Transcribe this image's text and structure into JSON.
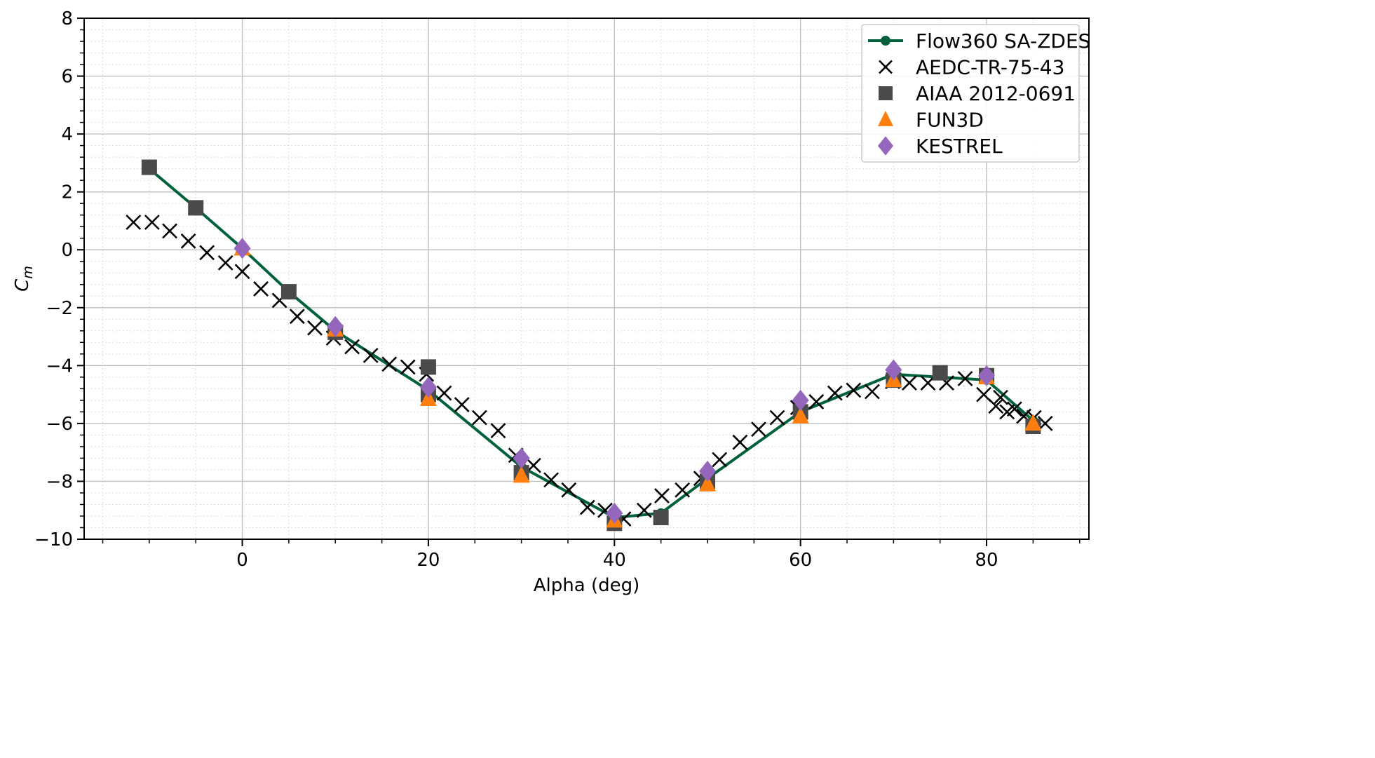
{
  "chart_data": {
    "type": "scatter",
    "xlabel": "Alpha (deg)",
    "ylabel_base": "C",
    "ylabel_sub": "m",
    "xlim": [
      -17,
      91
    ],
    "ylim": [
      -10,
      8
    ],
    "x_ticks": [
      0,
      20,
      40,
      60,
      80
    ],
    "y_ticks": [
      -10,
      -8,
      -6,
      -4,
      -2,
      0,
      2,
      4,
      6,
      8
    ],
    "x_tick_labels": [
      "0",
      "20",
      "40",
      "60",
      "80"
    ],
    "y_tick_labels": [
      "−10",
      "−8",
      "−6",
      "−4",
      "−2",
      "0",
      "2",
      "4",
      "6",
      "8"
    ],
    "grid": true,
    "legend_position": "top-right",
    "series": [
      {
        "name": "Flow360 SA-ZDES",
        "kind": "line-marker",
        "color": "#00613a",
        "x": [
          -10,
          -5,
          0,
          5,
          10,
          20,
          30,
          40,
          45,
          50,
          60,
          70,
          80,
          85
        ],
        "y": [
          2.8,
          1.45,
          0.05,
          -1.45,
          -2.8,
          -4.85,
          -7.5,
          -9.25,
          -9.1,
          -7.9,
          -5.6,
          -4.3,
          -4.5,
          -5.9
        ]
      },
      {
        "name": "AEDC-TR-75-43",
        "kind": "x-marker",
        "color": "#000000",
        "x": [
          -11.7,
          -9.7,
          -7.8,
          -5.8,
          -3.8,
          -1.8,
          0,
          2,
          4,
          5.9,
          7.8,
          9.8,
          11.8,
          13.8,
          15.8,
          17.8,
          19.8,
          21.7,
          23.6,
          25.5,
          27.5,
          29.4,
          31.3,
          33.2,
          35.1,
          37.1,
          39.0,
          41.0,
          43.2,
          45.1,
          47.3,
          49.3,
          51.3,
          53.5,
          55.5,
          57.5,
          59.7,
          61.7,
          63.7,
          65.7,
          67.7,
          69.9,
          71.7,
          73.7,
          75.7,
          77.7,
          79.7,
          81.5,
          83.0,
          85.1,
          86.3,
          81.0,
          82.2,
          84.0
        ],
        "y": [
          0.95,
          0.95,
          0.65,
          0.3,
          -0.1,
          -0.45,
          -0.75,
          -1.35,
          -1.75,
          -2.3,
          -2.7,
          -3.05,
          -3.35,
          -3.65,
          -3.95,
          -4.05,
          -4.3,
          -4.95,
          -5.35,
          -5.8,
          -6.25,
          -7.1,
          -7.45,
          -7.95,
          -8.3,
          -8.9,
          -9.0,
          -9.3,
          -9.0,
          -8.5,
          -8.3,
          -7.9,
          -7.25,
          -6.65,
          -6.2,
          -5.8,
          -5.45,
          -5.25,
          -4.95,
          -4.85,
          -4.9,
          -4.55,
          -4.6,
          -4.6,
          -4.6,
          -4.45,
          -5.0,
          -5.1,
          -5.5,
          -5.8,
          -6.0,
          -5.4,
          -5.6,
          -5.75
        ]
      },
      {
        "name": "AIAA 2012-0691",
        "kind": "square-marker",
        "color": "#4a4a4a",
        "x": [
          -10,
          -5,
          5,
          10,
          20,
          20,
          30,
          40,
          45,
          50,
          60,
          70,
          75,
          80,
          85
        ],
        "y": [
          2.85,
          1.45,
          -1.45,
          -2.85,
          -4.05,
          -5.0,
          -7.7,
          -9.45,
          -9.25,
          -8.0,
          -5.6,
          -4.5,
          -4.25,
          -4.35,
          -6.1
        ]
      },
      {
        "name": "FUN3D",
        "kind": "triangle-marker",
        "color": "#ff7f0e",
        "x": [
          0,
          10,
          20,
          30,
          40,
          50,
          60,
          70,
          80,
          85
        ],
        "y": [
          0.05,
          -2.75,
          -5.15,
          -7.8,
          -9.35,
          -8.1,
          -5.75,
          -4.5,
          -4.4,
          -6.0
        ]
      },
      {
        "name": "KESTREL",
        "kind": "diamond-marker",
        "color": "#9467bd",
        "x": [
          0,
          10,
          20,
          30,
          40,
          50,
          60,
          70,
          80
        ],
        "y": [
          0.05,
          -2.65,
          -4.75,
          -7.2,
          -9.1,
          -7.65,
          -5.2,
          -4.15,
          -4.35
        ]
      }
    ]
  }
}
